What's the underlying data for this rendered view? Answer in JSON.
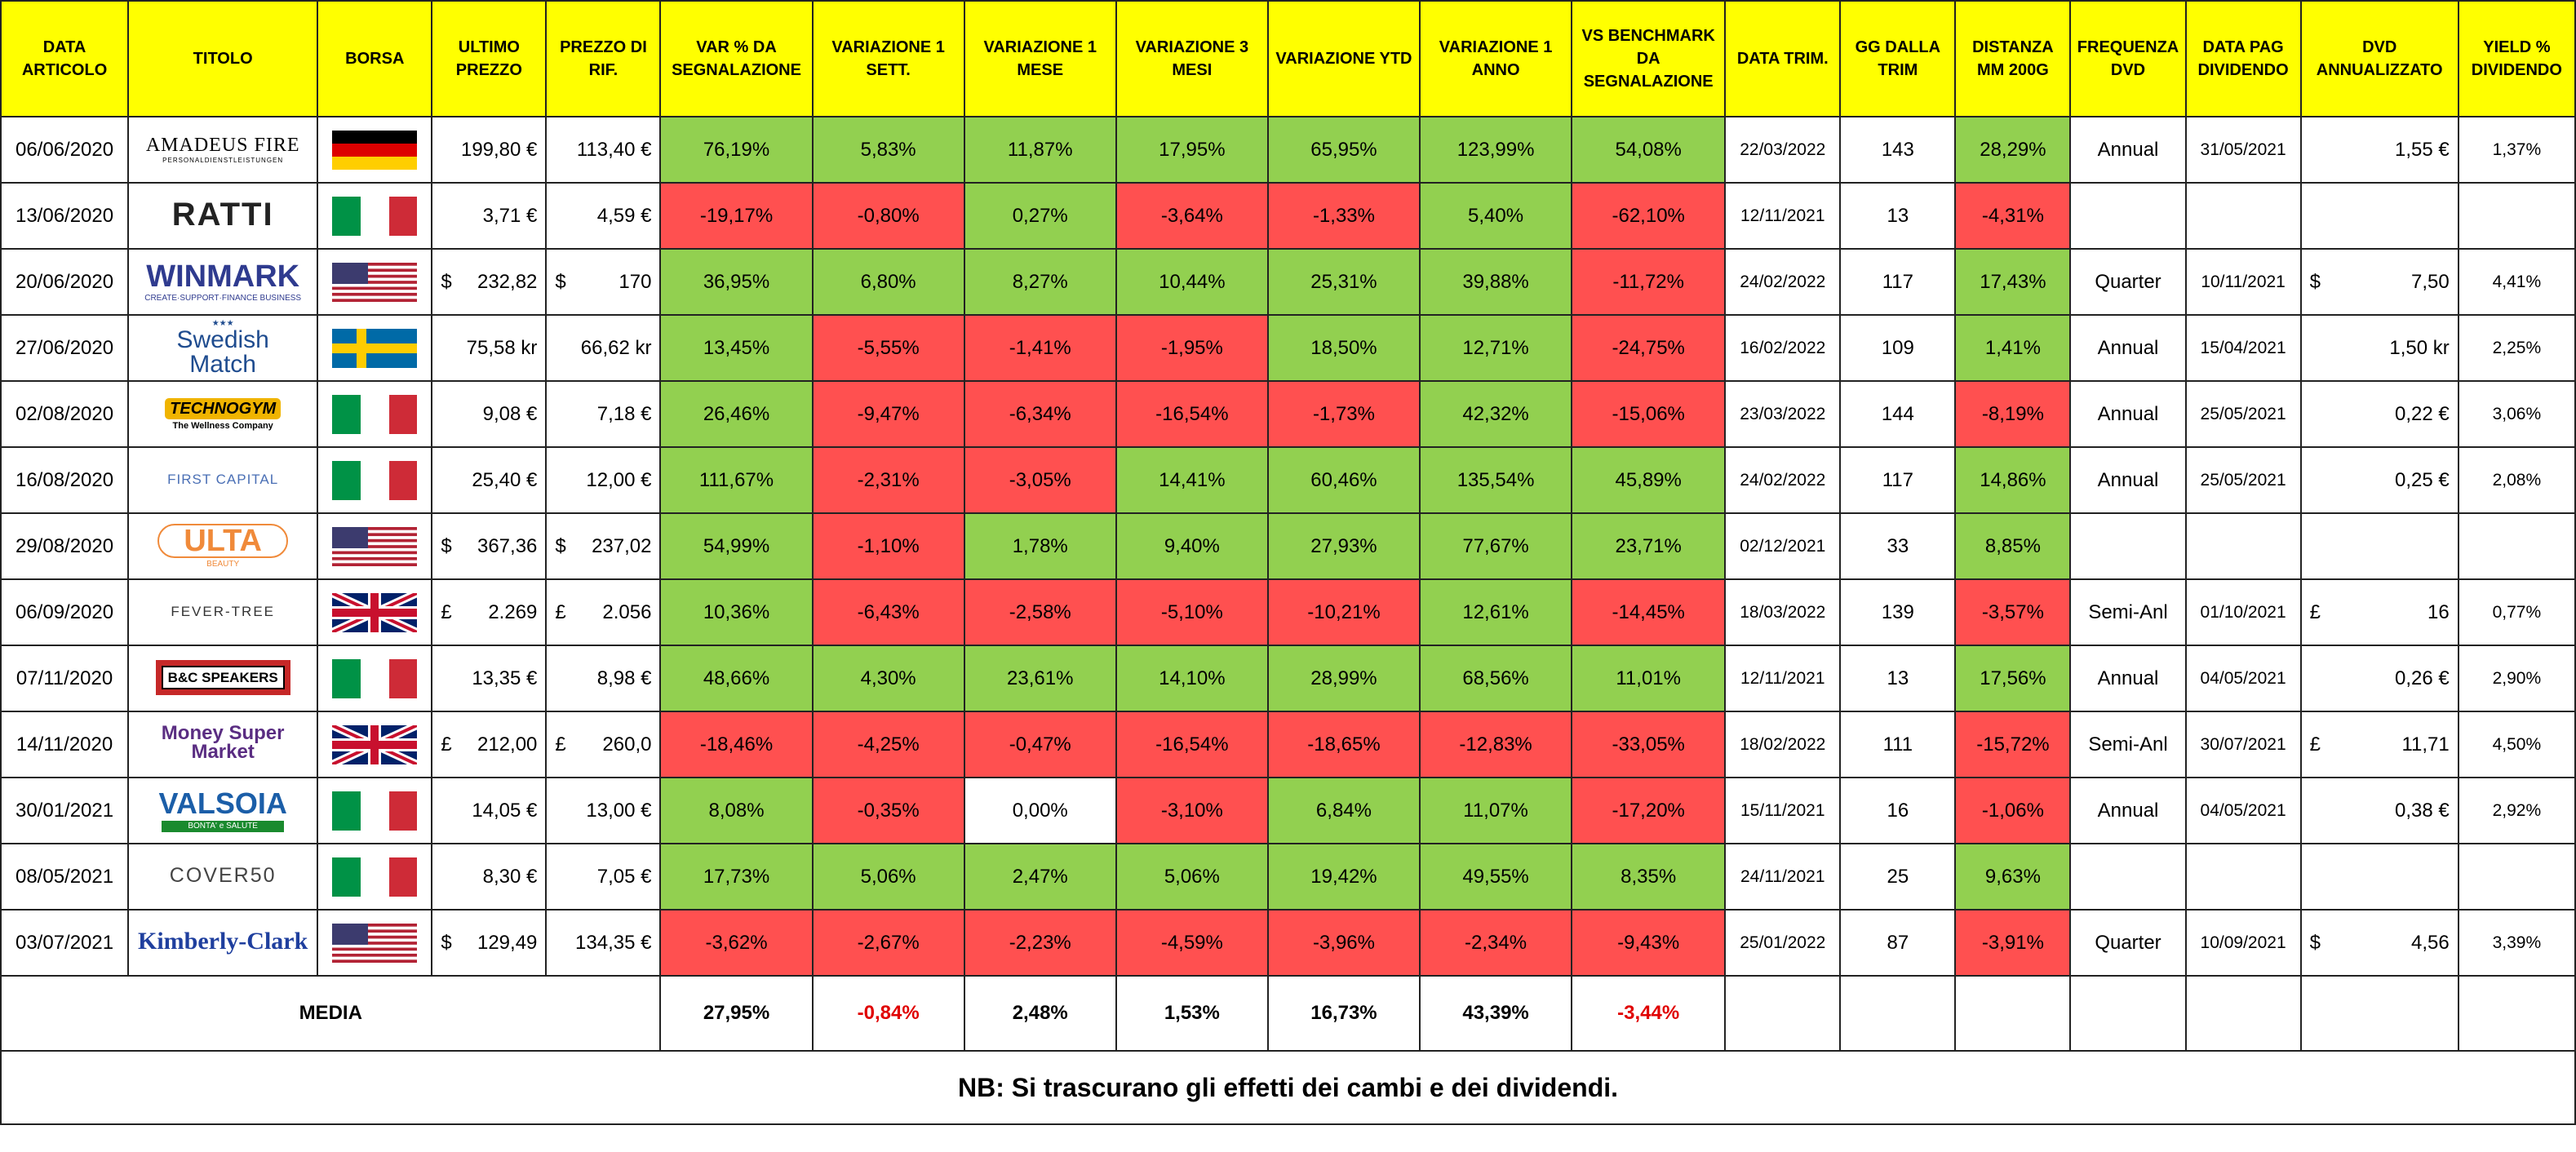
{
  "headers": [
    "DATA ARTICOLO",
    "TITOLO",
    "BORSA",
    "ULTIMO PREZZO",
    "PREZZO DI RIF.",
    "VAR % DA SEGNALAZIONE",
    "VARIAZIONE 1 SETT.",
    "VARIAZIONE 1 MESE",
    "VARIAZIONE 3 MESI",
    "VARIAZIONE YTD",
    "VARIAZIONE 1 ANNO",
    "VS BENCHMARK DA SEGNALAZIONE",
    "DATA TRIM.",
    "GG DALLA TRIM",
    "DISTANZA MM 200G",
    "FREQUENZA DVD",
    "DATA PAG DIVIDENDO",
    "DVD ANNUALIZZATO",
    "YIELD % DIVIDENDO"
  ],
  "colors": {
    "header": "#ffff00",
    "positive": "#92d050",
    "negative": "#ff5050",
    "negative_text": "#e00000"
  },
  "rows": [
    {
      "date": "06/06/2020",
      "logo": "AMADEUS FIRE",
      "logo_sub": "PERSONALDIENSTLEISTUNGEN",
      "flag": "de",
      "last_cur": "",
      "last": "199,80 €",
      "ref_cur": "",
      "ref": "113,40 €",
      "var": "76,19%",
      "w1": "5,83%",
      "m1": "11,87%",
      "m3": "17,95%",
      "ytd": "65,95%",
      "y1": "123,99%",
      "bench": "54,08%",
      "trim": "22/03/2022",
      "gg": "143",
      "mm": "28,29%",
      "freq": "Annual",
      "pay": "31/05/2021",
      "dvd_cur": "",
      "dvd": "1,55 €",
      "yield": "1,37%"
    },
    {
      "date": "13/06/2020",
      "logo": "RATTI",
      "logo_sub": "",
      "flag": "it",
      "last_cur": "",
      "last": "3,71 €",
      "ref_cur": "",
      "ref": "4,59 €",
      "var": "-19,17%",
      "w1": "-0,80%",
      "m1": "0,27%",
      "m3": "-3,64%",
      "ytd": "-1,33%",
      "y1": "5,40%",
      "bench": "-62,10%",
      "trim": "12/11/2021",
      "gg": "13",
      "mm": "-4,31%",
      "freq": "",
      "pay": "",
      "dvd_cur": "",
      "dvd": "",
      "yield": ""
    },
    {
      "date": "20/06/2020",
      "logo": "WINMARK",
      "logo_sub": "CREATE·SUPPORT·FINANCE BUSINESS",
      "flag": "us",
      "last_cur": "$",
      "last": "232,82",
      "ref_cur": "$",
      "ref": "170",
      "var": "36,95%",
      "w1": "6,80%",
      "m1": "8,27%",
      "m3": "10,44%",
      "ytd": "25,31%",
      "y1": "39,88%",
      "bench": "-11,72%",
      "trim": "24/02/2022",
      "gg": "117",
      "mm": "17,43%",
      "freq": "Quarter",
      "pay": "10/11/2021",
      "dvd_cur": "$",
      "dvd": "7,50",
      "yield": "4,41%"
    },
    {
      "date": "27/06/2020",
      "logo": "Swedish Match",
      "logo_sub": "★★★",
      "flag": "se",
      "last_cur": "",
      "last": "75,58 kr",
      "ref_cur": "",
      "ref": "66,62 kr",
      "var": "13,45%",
      "w1": "-5,55%",
      "m1": "-1,41%",
      "m3": "-1,95%",
      "ytd": "18,50%",
      "y1": "12,71%",
      "bench": "-24,75%",
      "trim": "16/02/2022",
      "gg": "109",
      "mm": "1,41%",
      "freq": "Annual",
      "pay": "15/04/2021",
      "dvd_cur": "",
      "dvd": "1,50 kr",
      "yield": "2,25%"
    },
    {
      "date": "02/08/2020",
      "logo": "TECHNOGYM",
      "logo_sub": "The Wellness Company",
      "flag": "it",
      "last_cur": "",
      "last": "9,08 €",
      "ref_cur": "",
      "ref": "7,18 €",
      "var": "26,46%",
      "w1": "-9,47%",
      "m1": "-6,34%",
      "m3": "-16,54%",
      "ytd": "-1,73%",
      "y1": "42,32%",
      "bench": "-15,06%",
      "trim": "23/03/2022",
      "gg": "144",
      "mm": "-8,19%",
      "freq": "Annual",
      "pay": "25/05/2021",
      "dvd_cur": "",
      "dvd": "0,22 €",
      "yield": "3,06%"
    },
    {
      "date": "16/08/2020",
      "logo": "FIRST CAPITAL",
      "logo_sub": "",
      "flag": "it",
      "last_cur": "",
      "last": "25,40 €",
      "ref_cur": "",
      "ref": "12,00 €",
      "var": "111,67%",
      "w1": "-2,31%",
      "m1": "-3,05%",
      "m3": "14,41%",
      "ytd": "60,46%",
      "y1": "135,54%",
      "bench": "45,89%",
      "trim": "24/02/2022",
      "gg": "117",
      "mm": "14,86%",
      "freq": "Annual",
      "pay": "25/05/2021",
      "dvd_cur": "",
      "dvd": "0,25 €",
      "yield": "2,08%"
    },
    {
      "date": "29/08/2020",
      "logo": "ULTA",
      "logo_sub": "BEAUTY",
      "flag": "us",
      "last_cur": "$",
      "last": "367,36",
      "ref_cur": "$",
      "ref": "237,02",
      "var": "54,99%",
      "w1": "-1,10%",
      "m1": "1,78%",
      "m3": "9,40%",
      "ytd": "27,93%",
      "y1": "77,67%",
      "bench": "23,71%",
      "trim": "02/12/2021",
      "gg": "33",
      "mm": "8,85%",
      "freq": "",
      "pay": "",
      "dvd_cur": "",
      "dvd": "",
      "yield": ""
    },
    {
      "date": "06/09/2020",
      "logo": "FEVER-TREE",
      "logo_sub": "",
      "flag": "uk",
      "last_cur": "£",
      "last": "2.269",
      "ref_cur": "£",
      "ref": "2.056",
      "var": "10,36%",
      "w1": "-6,43%",
      "m1": "-2,58%",
      "m3": "-5,10%",
      "ytd": "-10,21%",
      "y1": "12,61%",
      "bench": "-14,45%",
      "trim": "18/03/2022",
      "gg": "139",
      "mm": "-3,57%",
      "freq": "Semi-Anl",
      "pay": "01/10/2021",
      "dvd_cur": "£",
      "dvd": "16",
      "yield": "0,77%"
    },
    {
      "date": "07/11/2020",
      "logo": "B&C SPEAKERS",
      "logo_sub": "",
      "flag": "it",
      "last_cur": "",
      "last": "13,35 €",
      "ref_cur": "",
      "ref": "8,98 €",
      "var": "48,66%",
      "w1": "4,30%",
      "m1": "23,61%",
      "m3": "14,10%",
      "ytd": "28,99%",
      "y1": "68,56%",
      "bench": "11,01%",
      "trim": "12/11/2021",
      "gg": "13",
      "mm": "17,56%",
      "freq": "Annual",
      "pay": "04/05/2021",
      "dvd_cur": "",
      "dvd": "0,26 €",
      "yield": "2,90%"
    },
    {
      "date": "14/11/2020",
      "logo": "Money Super Market",
      "logo_sub": "",
      "flag": "uk",
      "last_cur": "£",
      "last": "212,00",
      "ref_cur": "£",
      "ref": "260,0",
      "var": "-18,46%",
      "w1": "-4,25%",
      "m1": "-0,47%",
      "m3": "-16,54%",
      "ytd": "-18,65%",
      "y1": "-12,83%",
      "bench": "-33,05%",
      "trim": "18/02/2022",
      "gg": "111",
      "mm": "-15,72%",
      "freq": "Semi-Anl",
      "pay": "30/07/2021",
      "dvd_cur": "£",
      "dvd": "11,71",
      "yield": "4,50%"
    },
    {
      "date": "30/01/2021",
      "logo": "VALSOIA",
      "logo_sub": "BONTA' e SALUTE",
      "flag": "it",
      "last_cur": "",
      "last": "14,05 €",
      "ref_cur": "",
      "ref": "13,00 €",
      "var": "8,08%",
      "w1": "-0,35%",
      "m1": "0,00%",
      "m3": "-3,10%",
      "ytd": "6,84%",
      "y1": "11,07%",
      "bench": "-17,20%",
      "trim": "15/11/2021",
      "gg": "16",
      "mm": "-1,06%",
      "freq": "Annual",
      "pay": "04/05/2021",
      "dvd_cur": "",
      "dvd": "0,38 €",
      "yield": "2,92%"
    },
    {
      "date": "08/05/2021",
      "logo": "COVER50",
      "logo_sub": "",
      "flag": "it",
      "last_cur": "",
      "last": "8,30 €",
      "ref_cur": "",
      "ref": "7,05 €",
      "var": "17,73%",
      "w1": "5,06%",
      "m1": "2,47%",
      "m3": "5,06%",
      "ytd": "19,42%",
      "y1": "49,55%",
      "bench": "8,35%",
      "trim": "24/11/2021",
      "gg": "25",
      "mm": "9,63%",
      "freq": "",
      "pay": "",
      "dvd_cur": "",
      "dvd": "",
      "yield": ""
    },
    {
      "date": "03/07/2021",
      "logo": "Kimberly-Clark",
      "logo_sub": "",
      "flag": "us",
      "last_cur": "$",
      "last": "129,49",
      "ref_cur": "",
      "ref": "134,35 €",
      "var": "-3,62%",
      "w1": "-2,67%",
      "m1": "-2,23%",
      "m3": "-4,59%",
      "ytd": "-3,96%",
      "y1": "-2,34%",
      "bench": "-9,43%",
      "trim": "25/01/2022",
      "gg": "87",
      "mm": "-3,91%",
      "freq": "Quarter",
      "pay": "10/09/2021",
      "dvd_cur": "$",
      "dvd": "4,56",
      "yield": "3,39%"
    }
  ],
  "average": {
    "label": "MEDIA",
    "var": "27,95%",
    "w1": "-0,84%",
    "m1": "2,48%",
    "m3": "1,53%",
    "ytd": "16,73%",
    "y1": "43,39%",
    "bench": "-3,44%"
  },
  "note": "NB: Si trascurano gli effetti dei cambi e dei dividendi."
}
